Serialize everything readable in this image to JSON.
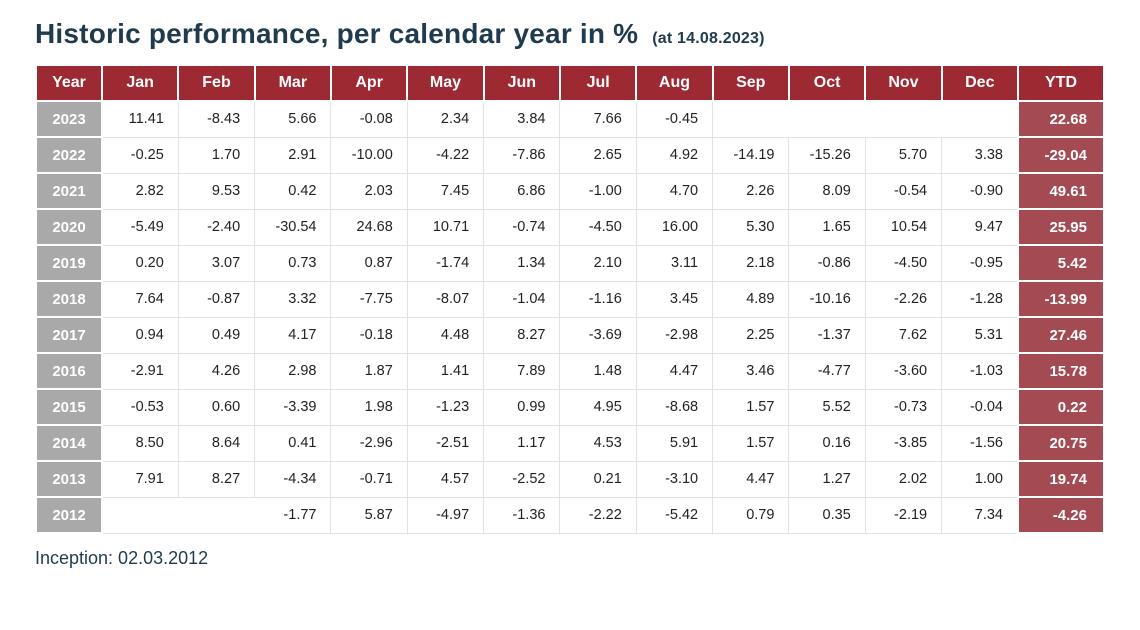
{
  "title": {
    "main": "Historic performance, per calendar year in %",
    "suffix": "(at 14.08.2023)"
  },
  "footer": "Inception: 02.03.2012",
  "colors": {
    "maroon": "#9d2933",
    "ytdbg": "#a34a52",
    "gray": "#a9a9a9",
    "title": "#1f3b4d"
  },
  "chart_data": {
    "type": "table",
    "title": "Historic performance, per calendar year in %",
    "subtitle": "(at 14.08.2023)",
    "columns": [
      "Year",
      "Jan",
      "Feb",
      "Mar",
      "Apr",
      "May",
      "Jun",
      "Jul",
      "Aug",
      "Sep",
      "Oct",
      "Nov",
      "Dec",
      "YTD"
    ],
    "rows": [
      {
        "year": "2023",
        "months": [
          "11.41",
          "-8.43",
          "5.66",
          "-0.08",
          "2.34",
          "3.84",
          "7.66",
          "-0.45",
          "",
          "",
          "",
          ""
        ],
        "ytd": "22.68"
      },
      {
        "year": "2022",
        "months": [
          "-0.25",
          "1.70",
          "2.91",
          "-10.00",
          "-4.22",
          "-7.86",
          "2.65",
          "4.92",
          "-14.19",
          "-15.26",
          "5.70",
          "3.38"
        ],
        "ytd": "-29.04"
      },
      {
        "year": "2021",
        "months": [
          "2.82",
          "9.53",
          "0.42",
          "2.03",
          "7.45",
          "6.86",
          "-1.00",
          "4.70",
          "2.26",
          "8.09",
          "-0.54",
          "-0.90"
        ],
        "ytd": "49.61"
      },
      {
        "year": "2020",
        "months": [
          "-5.49",
          "-2.40",
          "-30.54",
          "24.68",
          "10.71",
          "-0.74",
          "-4.50",
          "16.00",
          "5.30",
          "1.65",
          "10.54",
          "9.47"
        ],
        "ytd": "25.95"
      },
      {
        "year": "2019",
        "months": [
          "0.20",
          "3.07",
          "0.73",
          "0.87",
          "-1.74",
          "1.34",
          "2.10",
          "3.11",
          "2.18",
          "-0.86",
          "-4.50",
          "-0.95"
        ],
        "ytd": "5.42"
      },
      {
        "year": "2018",
        "months": [
          "7.64",
          "-0.87",
          "3.32",
          "-7.75",
          "-8.07",
          "-1.04",
          "-1.16",
          "3.45",
          "4.89",
          "-10.16",
          "-2.26",
          "-1.28"
        ],
        "ytd": "-13.99"
      },
      {
        "year": "2017",
        "months": [
          "0.94",
          "0.49",
          "4.17",
          "-0.18",
          "4.48",
          "8.27",
          "-3.69",
          "-2.98",
          "2.25",
          "-1.37",
          "7.62",
          "5.31"
        ],
        "ytd": "27.46"
      },
      {
        "year": "2016",
        "months": [
          "-2.91",
          "4.26",
          "2.98",
          "1.87",
          "1.41",
          "7.89",
          "1.48",
          "4.47",
          "3.46",
          "-4.77",
          "-3.60",
          "-1.03"
        ],
        "ytd": "15.78"
      },
      {
        "year": "2015",
        "months": [
          "-0.53",
          "0.60",
          "-3.39",
          "1.98",
          "-1.23",
          "0.99",
          "4.95",
          "-8.68",
          "1.57",
          "5.52",
          "-0.73",
          "-0.04"
        ],
        "ytd": "0.22"
      },
      {
        "year": "2014",
        "months": [
          "8.50",
          "8.64",
          "0.41",
          "-2.96",
          "-2.51",
          "1.17",
          "4.53",
          "5.91",
          "1.57",
          "0.16",
          "-3.85",
          "-1.56"
        ],
        "ytd": "20.75"
      },
      {
        "year": "2013",
        "months": [
          "7.91",
          "8.27",
          "-4.34",
          "-0.71",
          "4.57",
          "-2.52",
          "0.21",
          "-3.10",
          "4.47",
          "1.27",
          "2.02",
          "1.00"
        ],
        "ytd": "19.74"
      },
      {
        "year": "2012",
        "months": [
          "",
          "",
          "-1.77",
          "5.87",
          "-4.97",
          "-1.36",
          "-2.22",
          "-5.42",
          "0.79",
          "0.35",
          "-2.19",
          "7.34"
        ],
        "ytd": "-4.26"
      }
    ]
  }
}
